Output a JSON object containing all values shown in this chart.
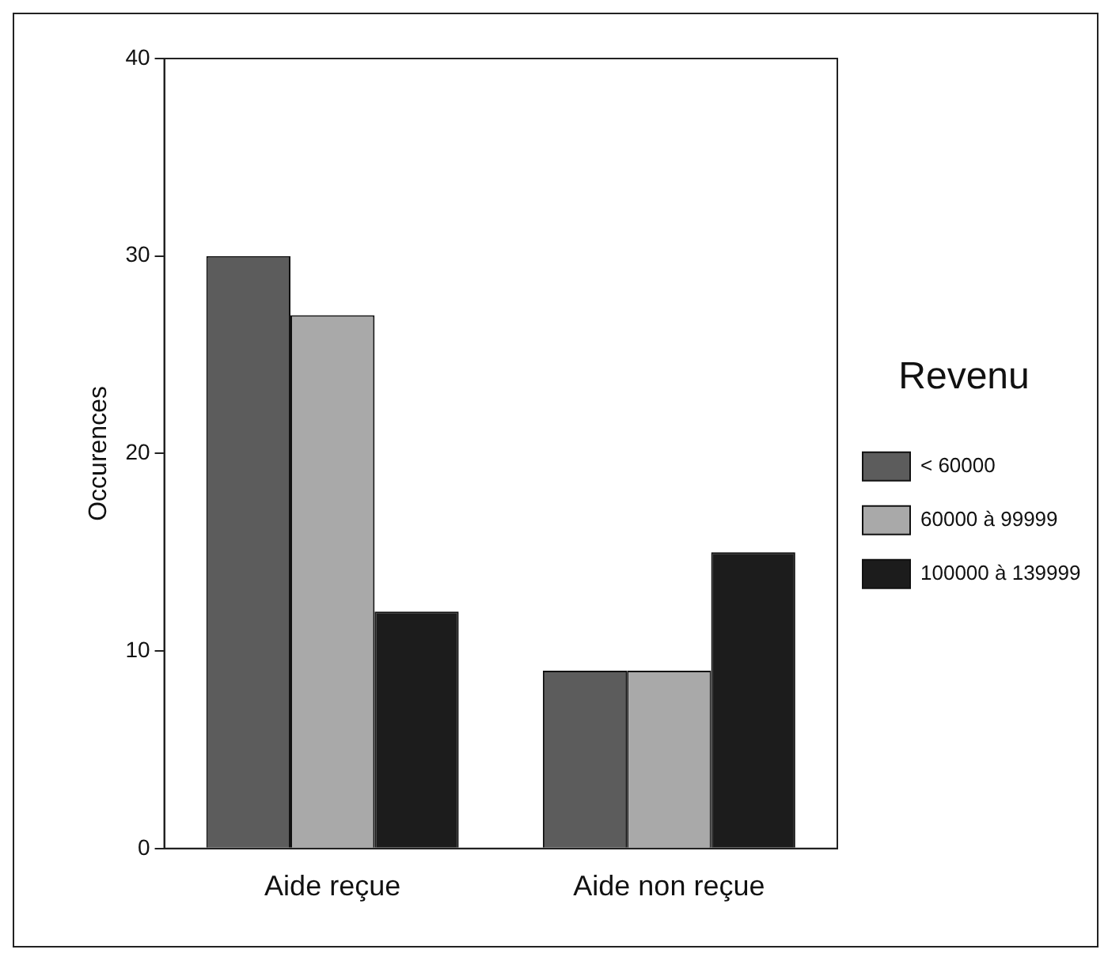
{
  "chart_data": {
    "type": "bar",
    "ylabel": "Occurences",
    "legend_title": "Revenu",
    "categories": [
      "Aide reçue",
      "Aide non reçue"
    ],
    "series": [
      {
        "name": "< 60000",
        "color": "#5c5c5c",
        "values": [
          30,
          9
        ]
      },
      {
        "name": "60000 à 99999",
        "color": "#a9a9a9",
        "values": [
          27,
          9
        ]
      },
      {
        "name": "100000 à 139999",
        "color": "#1c1c1c",
        "values": [
          12,
          15
        ]
      }
    ],
    "ylim": [
      0,
      40
    ],
    "yticks": [
      0,
      10,
      20,
      30,
      40
    ],
    "grid": false,
    "legend": "right"
  }
}
